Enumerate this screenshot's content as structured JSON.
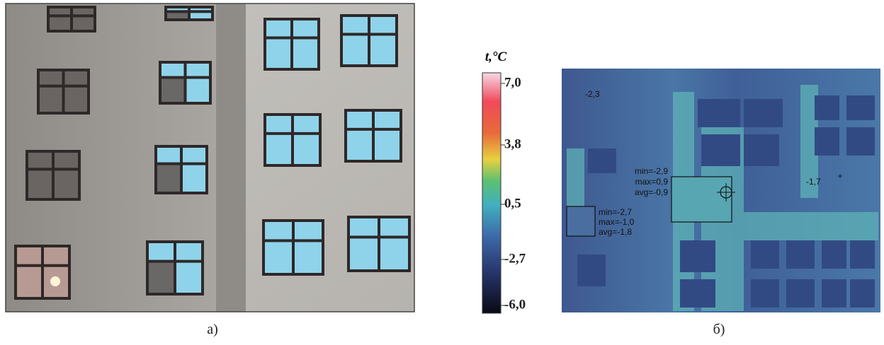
{
  "captions": {
    "left": "а)",
    "right": "б)"
  },
  "colorbar": {
    "title": "t,°C",
    "ticks": [
      "7,0",
      "3,8",
      "0,5",
      "-2,7",
      "-6,0"
    ]
  },
  "thermogram": {
    "point_labels": [
      "-2,3",
      "-1,7"
    ],
    "box_1": [
      "min=-2,9",
      "max=0,9",
      "avg=-0,9"
    ],
    "box_2": [
      "min=-2,7",
      "max=-1,0",
      "avg=-1,8"
    ]
  }
}
